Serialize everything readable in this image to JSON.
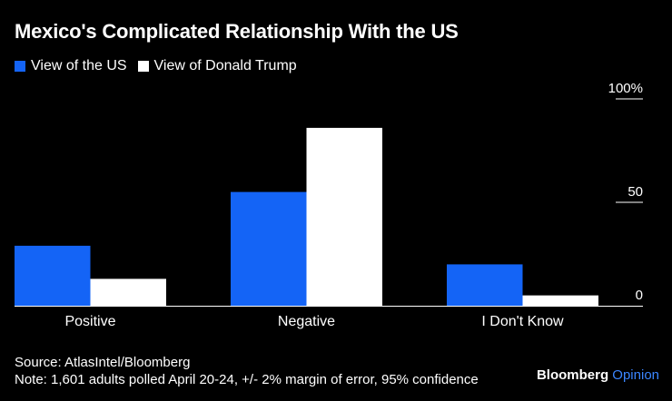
{
  "chart_data": {
    "type": "bar",
    "title": "Mexico's Complicated Relationship With the US",
    "categories": [
      "Positive",
      "Negative",
      "I Don't Know"
    ],
    "series": [
      {
        "name": "View of the US",
        "color": "#1464f6",
        "values": [
          29,
          55,
          20
        ]
      },
      {
        "name": "View of Donald Trump",
        "color": "#ffffff",
        "values": [
          13,
          86,
          5
        ]
      }
    ],
    "ylim": [
      0,
      100
    ],
    "yticks": [
      {
        "value": 0,
        "label": "0"
      },
      {
        "value": 50,
        "label": "50"
      },
      {
        "value": 100,
        "label": "100%"
      }
    ],
    "xlabel": "",
    "ylabel": ""
  },
  "source": "Source: AtlasIntel/Bloomberg",
  "note": "Note: 1,601 adults polled April 20-24, +/- 2% margin of error, 95% confidence",
  "brand": {
    "name": "Bloomberg",
    "suffix": "Opinion"
  }
}
